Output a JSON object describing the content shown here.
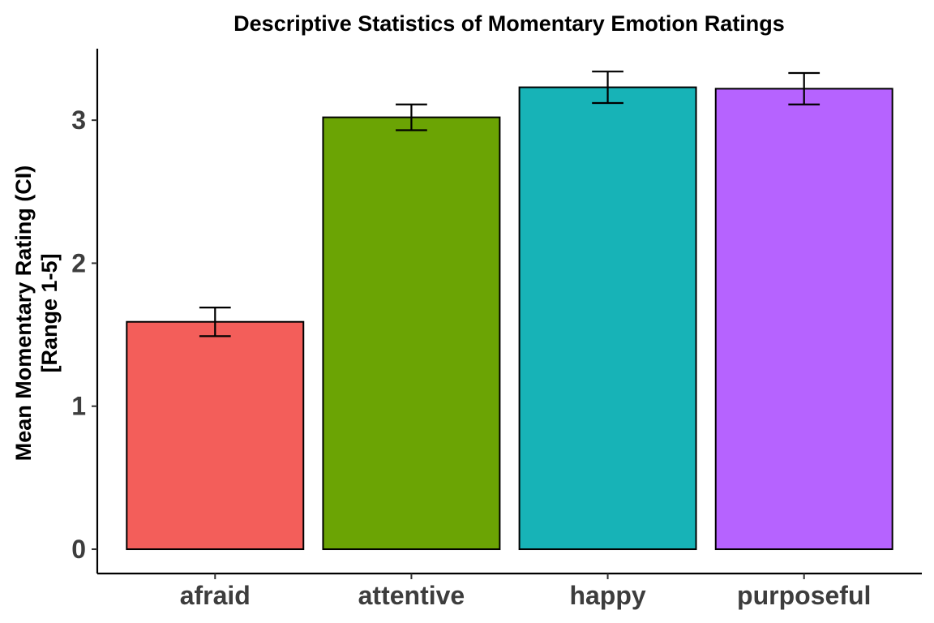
{
  "chart_data": {
    "type": "bar",
    "title": "Descriptive Statistics of Momentary Emotion Ratings",
    "xlabel": "",
    "ylabel_lines": [
      "Mean Momentary Rating (CI)",
      "[Range 1-5]"
    ],
    "categories": [
      "afraid",
      "attentive",
      "happy",
      "purposeful"
    ],
    "values": [
      1.59,
      3.02,
      3.23,
      3.22
    ],
    "ci_lower": [
      1.49,
      2.93,
      3.12,
      3.11
    ],
    "ci_upper": [
      1.69,
      3.11,
      3.34,
      3.33
    ],
    "colors": [
      "#F35E5A",
      "#6BA404",
      "#17B3B7",
      "#B663FF"
    ],
    "yticks": [
      0,
      1,
      2,
      3
    ],
    "ylim": [
      -0.17,
      3.5
    ],
    "grid": false,
    "legend": "none"
  }
}
